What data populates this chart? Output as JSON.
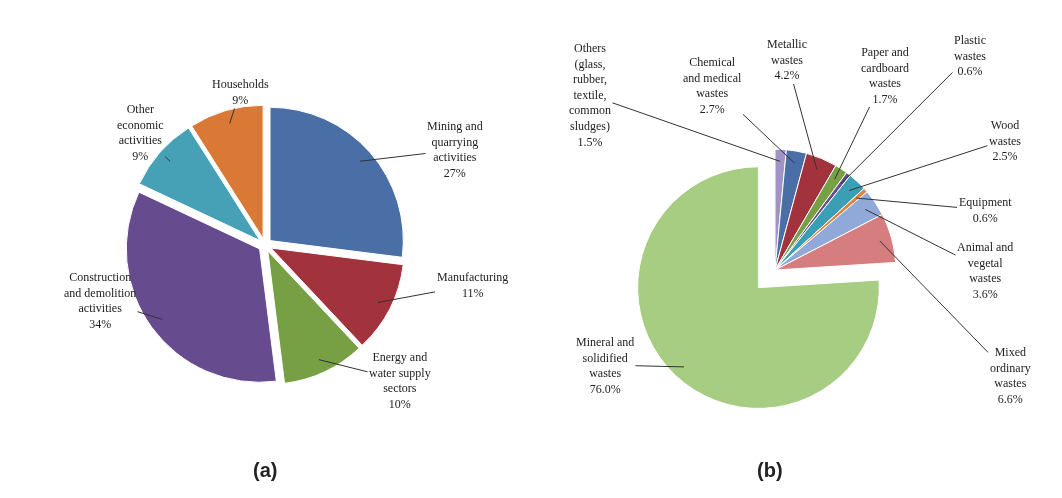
{
  "chart_data": [
    {
      "type": "pie",
      "title": "(a)",
      "categories": [
        "Mining and\nquarrying\nactivities",
        "Manufacturing",
        "Energy and\nwater supply\nsectors",
        "Construction\nand demolition\nactivities",
        "Other\neconomic\nactivities",
        "Households"
      ],
      "values": [
        27,
        11,
        10,
        34,
        9,
        9
      ],
      "value_labels": [
        "27%",
        "11%",
        "10%",
        "34%",
        "9%",
        "9%"
      ],
      "colors": [
        "#4a6ea6",
        "#a2323c",
        "#76a043",
        "#664b8f",
        "#46a1b7",
        "#da7836"
      ]
    },
    {
      "type": "pie",
      "title": "(b)",
      "categories": [
        "Others\n(glass,\nrubber,\ntextile,\ncommon\nsludges)",
        "Chemical\nand medical\nwastes",
        "Metallic\nwastes",
        "Paper and\ncardboard\nwastes",
        "Plastic\nwastes",
        "Wood\nwastes",
        "Equipment",
        "Animal and\nvegetal\nwastes",
        "Mixed\nordinary\nwastes",
        "Mineral and\nsolidified\nwastes"
      ],
      "values": [
        1.5,
        2.7,
        4.2,
        1.7,
        0.6,
        2.5,
        0.6,
        3.6,
        6.6,
        76.0
      ],
      "value_labels": [
        "1.5%",
        "2.7%",
        "4.2%",
        "1.7%",
        "0.6%",
        "2.5%",
        "0.6%",
        "3.6%",
        "6.6%",
        "76.0%"
      ],
      "colors": [
        "#a193c6",
        "#4a6ea6",
        "#a2323c",
        "#76a043",
        "#664b8f",
        "#3a9fb5",
        "#e0823a",
        "#90a9d9",
        "#d67d7f",
        "#a7cd82"
      ]
    }
  ]
}
